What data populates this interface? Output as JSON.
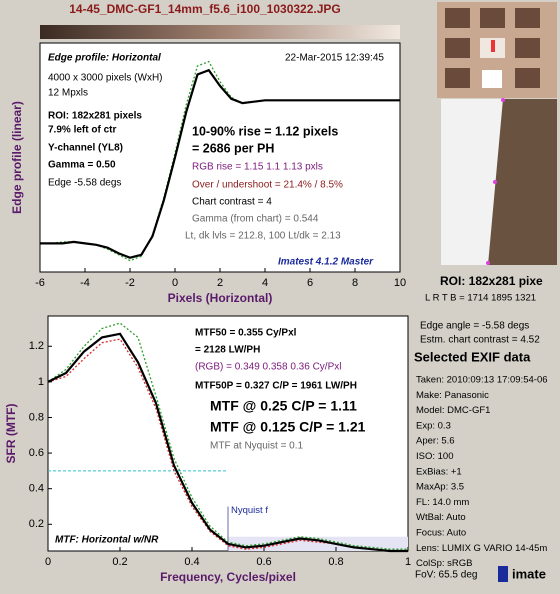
{
  "header": {
    "title": "14-45_DMC-GF1_14mm_f5.6_i100_1030322.JPG"
  },
  "chart_data": [
    {
      "type": "line",
      "x_label": "Pixels (Horizontal)",
      "y_label": "Edge profile (linear)",
      "x": [
        -6,
        -5.5,
        -5,
        -4.5,
        -4,
        -3.5,
        -3,
        -2.5,
        -2,
        -1.5,
        -1,
        -0.5,
        0,
        0.5,
        1,
        1.5,
        2,
        2.5,
        3,
        3.5,
        4,
        4.5,
        5,
        5.5,
        6,
        6.5,
        7,
        7.5,
        8,
        8.5,
        9,
        9.5,
        10
      ],
      "xlim": [
        -6,
        10
      ],
      "xticks": [
        -6,
        -4,
        -2,
        0,
        2,
        4,
        6,
        8,
        10
      ],
      "ylim": [
        -0.2,
        1.4
      ],
      "grid": false,
      "series": [
        {
          "color": "#2ca02c",
          "style": "dotted",
          "values": [
            0,
            0,
            0.01,
            0.01,
            0,
            -0.01,
            -0.04,
            -0.08,
            -0.12,
            -0.09,
            0.06,
            0.32,
            0.63,
            0.97,
            1.24,
            1.27,
            1.13,
            1.02,
            0.98,
            0.99,
            1,
            1,
            1,
            1,
            1,
            1,
            1,
            1,
            1,
            1,
            1,
            1,
            1
          ]
        },
        {
          "color": "#000000",
          "style": "solid",
          "values": [
            0,
            0,
            0,
            0.01,
            0,
            -0.01,
            -0.03,
            -0.07,
            -0.1,
            -0.08,
            0.05,
            0.3,
            0.6,
            0.92,
            1.18,
            1.21,
            1.1,
            1.01,
            0.98,
            0.99,
            1,
            1,
            1,
            1,
            1,
            1,
            1,
            1,
            1,
            1,
            1,
            1,
            1
          ]
        }
      ],
      "annotations": [
        "Edge profile: Horizontal",
        "22-Mar-2015 12:39:45",
        "4000 x 3000 pixels (WxH)",
        "12 Mpxls",
        "ROI:  182x281 pixels",
        "7.9% left of ctr",
        "Y-channel  (YL8)",
        "Gamma = 0.50",
        "Edge -5.58 degs",
        "10-90% rise = 1.12 pixels",
        "= 2686 per PH",
        "RGB rise = 1.15  1.1  1.13 pxls",
        "Over / undershoot = 21.4% / 8.5%",
        "Chart contrast = 4",
        "Gamma (from chart) = 0.544",
        "Lt, dk lvls = 212.8, 100   Lt/dk = 2.13",
        "Imatest 4.1.2 Master"
      ]
    },
    {
      "type": "line",
      "x_label": "Frequency, Cycles/pixel",
      "y_label": "SFR (MTF)",
      "x": [
        0,
        0.05,
        0.1,
        0.15,
        0.2,
        0.25,
        0.3,
        0.35,
        0.4,
        0.45,
        0.5,
        0.55,
        0.6,
        0.65,
        0.7,
        0.75,
        0.8,
        0.85,
        0.9,
        0.95,
        1
      ],
      "xlim": [
        0,
        1
      ],
      "xticks": [
        0,
        0.2,
        0.4,
        0.6,
        0.8,
        1
      ],
      "ylim": [
        0.05,
        1.37
      ],
      "yticks": [
        0.2,
        0.4,
        0.6,
        0.8,
        1,
        1.2
      ],
      "grid": false,
      "nyquist": {
        "value": 0.5,
        "label": "Nyquist f"
      },
      "reference_level": 0.5,
      "series": [
        {
          "color": "#2ca02c",
          "style": "dotted",
          "values": [
            1,
            1.07,
            1.2,
            1.3,
            1.33,
            1.25,
            0.92,
            0.57,
            0.35,
            0.19,
            0.1,
            0.08,
            0.09,
            0.11,
            0.13,
            0.12,
            0.1,
            0.08,
            0.07,
            0.06,
            0.06
          ]
        },
        {
          "color": "#d62728",
          "style": "dotted",
          "values": [
            1,
            1.03,
            1.13,
            1.22,
            1.24,
            1.08,
            0.85,
            0.5,
            0.3,
            0.16,
            0.08,
            0.06,
            0.07,
            0.09,
            0.11,
            0.1,
            0.09,
            0.07,
            0.06,
            0.05,
            0.05
          ]
        },
        {
          "color": "#000000",
          "style": "solid",
          "values": [
            1,
            1.05,
            1.17,
            1.25,
            1.27,
            1.11,
            0.88,
            0.53,
            0.32,
            0.17,
            0.09,
            0.07,
            0.08,
            0.1,
            0.12,
            0.11,
            0.09,
            0.07,
            0.06,
            0.05,
            0.05
          ]
        }
      ],
      "annotations": [
        "MTF50 = 0.355 Cy/Pxl",
        "= 2128 LW/PH",
        "(RGB) = 0.349  0.358  0.36 Cy/Pxl",
        "MTF50P = 0.327 C/P = 1961 LW/PH",
        "MTF @ 0.25 C/P = 1.11",
        "MTF @ 0.125 C/P = 1.21",
        "MTF at Nyquist = 0.1",
        "MTF: Horizontal w/NR"
      ]
    }
  ],
  "panel": {
    "roi": "ROI:  182x281 pixe",
    "lrtb": "L R T B = 1714 1895 1321",
    "edge_angle": "Edge angle = -5.58 degs",
    "contrast": "Estm. chart contrast = 4.52",
    "exif_title": "Selected EXIF data",
    "exif": [
      "Taken: 2010:09:13 17:09:54-06",
      "Make:  Panasonic",
      "Model:  DMC-GF1",
      "Exp:    0.3",
      "Aper:    5.6",
      "ISO:     100",
      "ExBias:  +1",
      "MaxAp:  3.5",
      "FL:      14.0 mm",
      "WtBal:  Auto",
      "Focus:  Auto",
      "Lens:   LUMIX G VARIO 14-45m",
      "ColSp:  sRGB"
    ],
    "fov": "FoV:  65.5 deg",
    "logo": "imate"
  }
}
